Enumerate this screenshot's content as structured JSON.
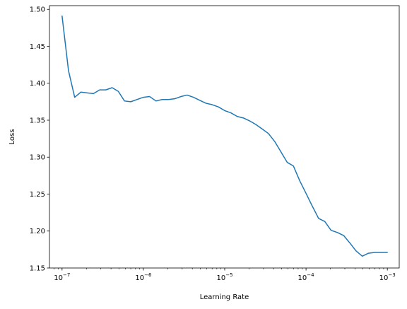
{
  "chart_data": {
    "type": "line",
    "xscale": "log",
    "xlabel": "Learning Rate",
    "ylabel": "Loss",
    "xlim": [
      7e-08,
      0.0014
    ],
    "ylim": [
      1.15,
      1.505
    ],
    "grid": false,
    "line_color": "#1f77b4",
    "x_ticks": [
      {
        "value": 1e-07,
        "exp": "-7"
      },
      {
        "value": 1e-06,
        "exp": "-6"
      },
      {
        "value": 1e-05,
        "exp": "-5"
      },
      {
        "value": 0.0001,
        "exp": "-4"
      },
      {
        "value": 0.001,
        "exp": "-3"
      }
    ],
    "y_ticks": [
      {
        "value": 1.15,
        "label": "1.15"
      },
      {
        "value": 1.2,
        "label": "1.20"
      },
      {
        "value": 1.25,
        "label": "1.25"
      },
      {
        "value": 1.3,
        "label": "1.30"
      },
      {
        "value": 1.35,
        "label": "1.35"
      },
      {
        "value": 1.4,
        "label": "1.40"
      },
      {
        "value": 1.45,
        "label": "1.45"
      },
      {
        "value": 1.5,
        "label": "1.50"
      }
    ],
    "x": [
      1e-07,
      1.2e-07,
      1.43e-07,
      1.7e-07,
      2.03e-07,
      2.43e-07,
      2.9e-07,
      3.45e-07,
      4.13e-07,
      4.92e-07,
      5.86e-07,
      7e-07,
      8.37e-07,
      1e-06,
      1.19e-06,
      1.43e-06,
      1.7e-06,
      2.03e-06,
      2.43e-06,
      2.9e-06,
      3.45e-06,
      4.13e-06,
      4.92e-06,
      5.86e-06,
      7e-06,
      8.37e-06,
      1e-05,
      1.19e-05,
      1.43e-05,
      1.7e-05,
      2.03e-05,
      2.43e-05,
      2.9e-05,
      3.45e-05,
      4.13e-05,
      4.92e-05,
      5.86e-05,
      7e-05,
      8.37e-05,
      0.0001,
      0.000119,
      0.000143,
      0.00017,
      0.000203,
      0.000243,
      0.00029,
      0.000345,
      0.000413,
      0.000492,
      0.000586,
      0.0007,
      0.000837,
      0.001
    ],
    "y": [
      1.491,
      1.417,
      1.381,
      1.388,
      1.387,
      1.386,
      1.391,
      1.391,
      1.394,
      1.389,
      1.376,
      1.375,
      1.378,
      1.381,
      1.382,
      1.376,
      1.378,
      1.378,
      1.379,
      1.382,
      1.384,
      1.381,
      1.377,
      1.373,
      1.371,
      1.368,
      1.363,
      1.36,
      1.355,
      1.353,
      1.349,
      1.344,
      1.338,
      1.332,
      1.321,
      1.307,
      1.293,
      1.288,
      1.268,
      1.251,
      1.234,
      1.217,
      1.213,
      1.201,
      1.198,
      1.194,
      1.184,
      1.173,
      1.166,
      1.17,
      1.171,
      1.171,
      1.171
    ]
  }
}
